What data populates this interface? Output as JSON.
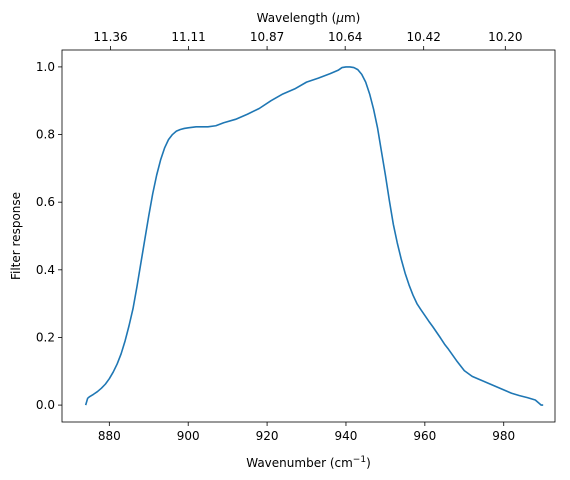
{
  "chart_data": {
    "type": "line",
    "xlabel": "Wavenumber (cm",
    "xlabel_sup": "−1",
    "xlabel_end": ")",
    "ylabel": "Filter response",
    "top_xlabel": "Wavelength (",
    "top_xlabel_mu": "μ",
    "top_xlabel_end": "m)",
    "xlim": [
      868,
      993
    ],
    "ylim": [
      -0.05,
      1.05
    ],
    "x_ticks": [
      880,
      900,
      920,
      940,
      960,
      980
    ],
    "y_ticks": [
      0.0,
      0.2,
      0.4,
      0.6,
      0.8,
      1.0
    ],
    "x_tick_labels": [
      "880",
      "900",
      "920",
      "940",
      "960",
      "980"
    ],
    "y_tick_labels": [
      "0.0",
      "0.2",
      "0.4",
      "0.6",
      "0.8",
      "1.0"
    ],
    "top_ticks": [
      {
        "at": 880.3,
        "label": "11.36"
      },
      {
        "at": 900.1,
        "label": "11.11"
      },
      {
        "at": 920.0,
        "label": "10.87"
      },
      {
        "at": 939.8,
        "label": "10.64"
      },
      {
        "at": 959.7,
        "label": "10.42"
      },
      {
        "at": 980.4,
        "label": "10.20"
      }
    ],
    "line_color": "#1f77b4",
    "series": [
      {
        "x": [
          874.0,
          874.5,
          875.0,
          876.0,
          877.0,
          878.0,
          879.0,
          880.0,
          881.0,
          882.0,
          883.0,
          884.0,
          885.0,
          886.0,
          887.0,
          888.0,
          889.0,
          890.0,
          891.0,
          892.0,
          893.0,
          894.0,
          895.0,
          896.0,
          897.0,
          898.0,
          899.0,
          900.0,
          902.0,
          905.0,
          907.0,
          909.0,
          912.0,
          915.0,
          918.0,
          921.0,
          924.0,
          927.0,
          930.0,
          933.0,
          936.0,
          938.0,
          939.0,
          940.0,
          941.0,
          942.0,
          943.0,
          944.0,
          945.0,
          946.0,
          947.0,
          948.0,
          949.0,
          950.0,
          951.0,
          952.0,
          953.0,
          954.0,
          955.0,
          956.0,
          957.0,
          958.0,
          959.0,
          960.0,
          961.0,
          962.0,
          963.0,
          964.0,
          965.0,
          966.0,
          968.0,
          970.0,
          972.0,
          974.0,
          976.0,
          978.0,
          980.0,
          982.0,
          984.0,
          986.0,
          988.0,
          989.0,
          989.5,
          990.0
        ],
        "y": [
          0.0,
          0.02,
          0.025,
          0.032,
          0.04,
          0.05,
          0.062,
          0.078,
          0.098,
          0.122,
          0.152,
          0.19,
          0.235,
          0.285,
          0.35,
          0.42,
          0.49,
          0.56,
          0.625,
          0.68,
          0.725,
          0.76,
          0.785,
          0.8,
          0.81,
          0.815,
          0.818,
          0.82,
          0.823,
          0.823,
          0.826,
          0.835,
          0.845,
          0.86,
          0.877,
          0.9,
          0.92,
          0.935,
          0.955,
          0.967,
          0.98,
          0.99,
          0.998,
          1.0,
          1.0,
          0.998,
          0.992,
          0.978,
          0.955,
          0.92,
          0.875,
          0.82,
          0.75,
          0.68,
          0.605,
          0.535,
          0.48,
          0.432,
          0.39,
          0.355,
          0.325,
          0.3,
          0.282,
          0.265,
          0.248,
          0.232,
          0.215,
          0.198,
          0.18,
          0.165,
          0.132,
          0.102,
          0.085,
          0.075,
          0.065,
          0.055,
          0.045,
          0.035,
          0.028,
          0.022,
          0.015,
          0.005,
          0.0,
          0.0
        ]
      }
    ]
  }
}
